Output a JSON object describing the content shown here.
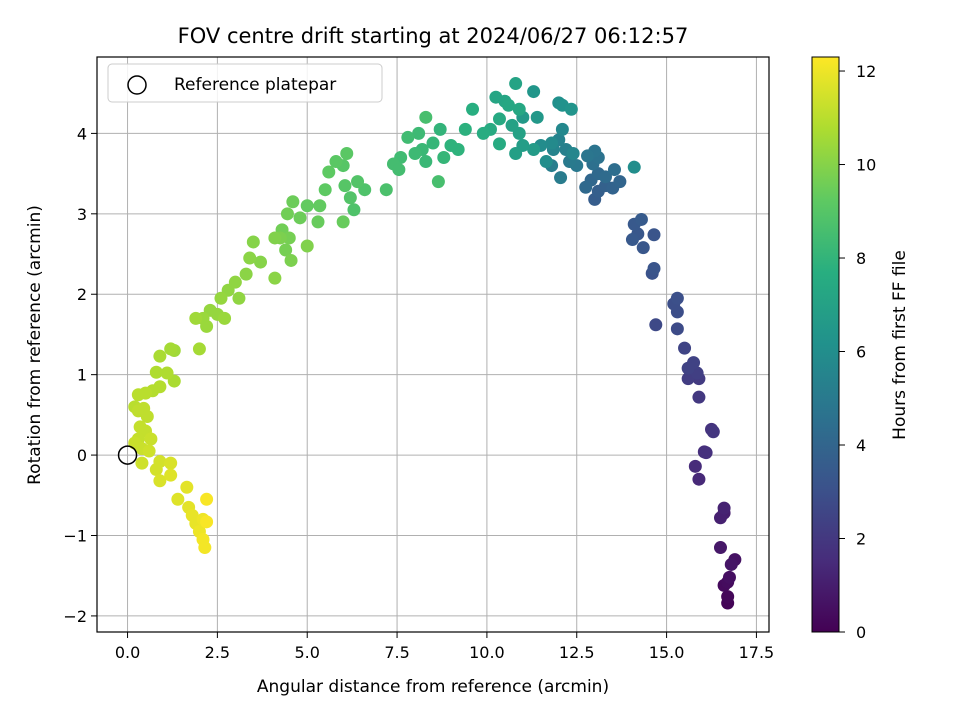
{
  "chart_data": {
    "type": "scatter",
    "title": "FOV centre drift starting at 2024/06/27 06:12:57",
    "xlabel": "Angular distance from reference (arcmin)",
    "ylabel": "Rotation from reference (arcmin)",
    "xlim": [
      -0.85,
      17.85
    ],
    "ylim": [
      -2.2,
      4.95
    ],
    "xticks": [
      0.0,
      2.5,
      5.0,
      7.5,
      10.0,
      12.5,
      15.0,
      17.5
    ],
    "xtick_labels": [
      "0.0",
      "2.5",
      "5.0",
      "7.5",
      "10.0",
      "12.5",
      "15.0",
      "17.5"
    ],
    "yticks": [
      -2,
      -1,
      0,
      1,
      2,
      3,
      4
    ],
    "ytick_labels": [
      "−2",
      "−1",
      "0",
      "1",
      "2",
      "3",
      "4"
    ],
    "grid": true,
    "legend": {
      "position": "top-left",
      "entries": [
        {
          "label": "Reference platepar",
          "marker": "open-circle"
        }
      ]
    },
    "reference_point": {
      "x": 0,
      "y": 0
    },
    "colorbar": {
      "label": "Hours from first FF file",
      "colormap": "viridis",
      "range": [
        0,
        12.3
      ],
      "ticks": [
        0,
        2,
        4,
        6,
        8,
        10,
        12
      ],
      "tick_labels": [
        "0",
        "2",
        "4",
        "6",
        "8",
        "10",
        "12"
      ]
    },
    "series": [
      {
        "value_key": "hours",
        "points": [
          {
            "x": 16.7,
            "y": -1.84,
            "h": 0.1
          },
          {
            "x": 16.7,
            "y": -1.76,
            "h": 0.2
          },
          {
            "x": 16.6,
            "y": -1.62,
            "h": 0.3
          },
          {
            "x": 16.7,
            "y": -1.58,
            "h": 0.4
          },
          {
            "x": 16.75,
            "y": -1.52,
            "h": 0.5
          },
          {
            "x": 16.9,
            "y": -1.3,
            "h": 0.6
          },
          {
            "x": 16.8,
            "y": -1.36,
            "h": 0.7
          },
          {
            "x": 16.5,
            "y": -1.15,
            "h": 0.8
          },
          {
            "x": 16.6,
            "y": -0.72,
            "h": 1.0
          },
          {
            "x": 16.5,
            "y": -0.78,
            "h": 1.1
          },
          {
            "x": 16.6,
            "y": -0.66,
            "h": 1.2
          },
          {
            "x": 15.9,
            "y": -0.3,
            "h": 1.4
          },
          {
            "x": 15.8,
            "y": -0.14,
            "h": 1.5
          },
          {
            "x": 16.05,
            "y": 0.04,
            "h": 1.6
          },
          {
            "x": 16.1,
            "y": 0.03,
            "h": 1.7
          },
          {
            "x": 16.25,
            "y": 0.32,
            "h": 1.8
          },
          {
            "x": 16.3,
            "y": 0.29,
            "h": 1.9
          },
          {
            "x": 15.9,
            "y": 0.72,
            "h": 2.0
          },
          {
            "x": 15.9,
            "y": 0.95,
            "h": 2.1
          },
          {
            "x": 15.6,
            "y": 0.95,
            "h": 2.2
          },
          {
            "x": 15.7,
            "y": 1.05,
            "h": 2.2
          },
          {
            "x": 15.85,
            "y": 1.02,
            "h": 2.3
          },
          {
            "x": 15.75,
            "y": 1.15,
            "h": 2.4
          },
          {
            "x": 15.6,
            "y": 1.08,
            "h": 2.4
          },
          {
            "x": 15.5,
            "y": 1.33,
            "h": 2.5
          },
          {
            "x": 14.7,
            "y": 1.62,
            "h": 2.7
          },
          {
            "x": 15.3,
            "y": 1.57,
            "h": 2.8
          },
          {
            "x": 15.3,
            "y": 1.78,
            "h": 2.9
          },
          {
            "x": 15.2,
            "y": 1.88,
            "h": 2.9
          },
          {
            "x": 15.3,
            "y": 1.95,
            "h": 3.0
          },
          {
            "x": 14.6,
            "y": 2.26,
            "h": 3.1
          },
          {
            "x": 14.65,
            "y": 2.32,
            "h": 3.2
          },
          {
            "x": 14.65,
            "y": 2.74,
            "h": 3.2
          },
          {
            "x": 14.35,
            "y": 2.58,
            "h": 3.3
          },
          {
            "x": 14.2,
            "y": 2.75,
            "h": 3.3
          },
          {
            "x": 14.05,
            "y": 2.68,
            "h": 3.4
          },
          {
            "x": 14.1,
            "y": 2.87,
            "h": 3.4
          },
          {
            "x": 14.3,
            "y": 2.93,
            "h": 3.5
          },
          {
            "x": 13.0,
            "y": 3.18,
            "h": 3.6
          },
          {
            "x": 13.1,
            "y": 3.28,
            "h": 3.7
          },
          {
            "x": 13.3,
            "y": 3.35,
            "h": 3.8
          },
          {
            "x": 13.5,
            "y": 3.32,
            "h": 3.9
          },
          {
            "x": 13.7,
            "y": 3.4,
            "h": 4.0
          },
          {
            "x": 12.9,
            "y": 3.42,
            "h": 4.1
          },
          {
            "x": 12.75,
            "y": 3.33,
            "h": 4.2
          },
          {
            "x": 13.1,
            "y": 3.5,
            "h": 4.2
          },
          {
            "x": 13.3,
            "y": 3.46,
            "h": 4.3
          },
          {
            "x": 13.55,
            "y": 3.55,
            "h": 4.4
          },
          {
            "x": 12.95,
            "y": 3.62,
            "h": 4.5
          },
          {
            "x": 13.1,
            "y": 3.7,
            "h": 4.6
          },
          {
            "x": 13.0,
            "y": 3.78,
            "h": 4.7
          },
          {
            "x": 12.8,
            "y": 3.72,
            "h": 4.8
          },
          {
            "x": 12.5,
            "y": 3.6,
            "h": 4.9
          },
          {
            "x": 12.3,
            "y": 3.65,
            "h": 5.0
          },
          {
            "x": 12.05,
            "y": 3.45,
            "h": 5.1
          },
          {
            "x": 11.8,
            "y": 3.6,
            "h": 5.2
          },
          {
            "x": 12.2,
            "y": 3.8,
            "h": 5.3
          },
          {
            "x": 12.0,
            "y": 3.92,
            "h": 5.4
          },
          {
            "x": 11.85,
            "y": 3.8,
            "h": 5.5
          },
          {
            "x": 12.4,
            "y": 3.75,
            "h": 5.6
          },
          {
            "x": 12.1,
            "y": 4.05,
            "h": 5.7
          },
          {
            "x": 11.8,
            "y": 3.88,
            "h": 5.8
          },
          {
            "x": 11.5,
            "y": 3.85,
            "h": 5.9
          },
          {
            "x": 11.65,
            "y": 3.65,
            "h": 6.0
          },
          {
            "x": 14.1,
            "y": 3.58,
            "h": 6.0
          },
          {
            "x": 12.0,
            "y": 4.38,
            "h": 6.1
          },
          {
            "x": 12.1,
            "y": 4.35,
            "h": 6.2
          },
          {
            "x": 12.35,
            "y": 4.3,
            "h": 6.3
          },
          {
            "x": 11.3,
            "y": 4.52,
            "h": 6.4
          },
          {
            "x": 11.4,
            "y": 4.2,
            "h": 6.5
          },
          {
            "x": 11.0,
            "y": 4.2,
            "h": 6.6
          },
          {
            "x": 11.3,
            "y": 3.8,
            "h": 6.7
          },
          {
            "x": 11.0,
            "y": 3.85,
            "h": 6.8
          },
          {
            "x": 10.8,
            "y": 3.75,
            "h": 6.9
          },
          {
            "x": 10.9,
            "y": 4.0,
            "h": 7.0
          },
          {
            "x": 10.7,
            "y": 4.1,
            "h": 7.0
          },
          {
            "x": 10.8,
            "y": 4.62,
            "h": 7.1
          },
          {
            "x": 10.5,
            "y": 4.4,
            "h": 7.2
          },
          {
            "x": 10.25,
            "y": 4.45,
            "h": 7.2
          },
          {
            "x": 10.6,
            "y": 4.35,
            "h": 7.3
          },
          {
            "x": 10.9,
            "y": 4.3,
            "h": 7.3
          },
          {
            "x": 10.35,
            "y": 4.18,
            "h": 7.4
          },
          {
            "x": 10.1,
            "y": 4.05,
            "h": 7.5
          },
          {
            "x": 10.35,
            "y": 3.87,
            "h": 7.5
          },
          {
            "x": 9.9,
            "y": 4.0,
            "h": 7.6
          },
          {
            "x": 9.6,
            "y": 4.3,
            "h": 7.7
          },
          {
            "x": 9.4,
            "y": 4.05,
            "h": 7.8
          },
          {
            "x": 9.2,
            "y": 3.8,
            "h": 7.9
          },
          {
            "x": 9.0,
            "y": 3.85,
            "h": 7.9
          },
          {
            "x": 8.7,
            "y": 4.05,
            "h": 8.0
          },
          {
            "x": 8.8,
            "y": 3.7,
            "h": 8.1
          },
          {
            "x": 8.5,
            "y": 3.88,
            "h": 8.1
          },
          {
            "x": 8.3,
            "y": 3.65,
            "h": 8.2
          },
          {
            "x": 8.2,
            "y": 3.8,
            "h": 8.2
          },
          {
            "x": 8.1,
            "y": 4.0,
            "h": 8.3
          },
          {
            "x": 8.0,
            "y": 3.75,
            "h": 8.3
          },
          {
            "x": 7.8,
            "y": 3.95,
            "h": 8.4
          },
          {
            "x": 7.6,
            "y": 3.7,
            "h": 8.4
          },
          {
            "x": 7.4,
            "y": 3.62,
            "h": 8.5
          },
          {
            "x": 7.55,
            "y": 3.55,
            "h": 8.5
          },
          {
            "x": 8.3,
            "y": 4.2,
            "h": 8.6
          },
          {
            "x": 8.65,
            "y": 3.4,
            "h": 8.6
          },
          {
            "x": 7.2,
            "y": 3.3,
            "h": 8.7
          },
          {
            "x": 6.6,
            "y": 3.3,
            "h": 8.8
          },
          {
            "x": 6.3,
            "y": 3.05,
            "h": 8.8
          },
          {
            "x": 6.4,
            "y": 3.4,
            "h": 8.9
          },
          {
            "x": 6.2,
            "y": 3.2,
            "h": 8.9
          },
          {
            "x": 6.05,
            "y": 3.35,
            "h": 9.0
          },
          {
            "x": 6.0,
            "y": 3.6,
            "h": 9.0
          },
          {
            "x": 6.1,
            "y": 3.75,
            "h": 9.1
          },
          {
            "x": 5.8,
            "y": 3.65,
            "h": 9.1
          },
          {
            "x": 5.6,
            "y": 3.52,
            "h": 9.2
          },
          {
            "x": 5.5,
            "y": 3.3,
            "h": 9.2
          },
          {
            "x": 5.35,
            "y": 3.1,
            "h": 9.3
          },
          {
            "x": 5.0,
            "y": 3.1,
            "h": 9.3
          },
          {
            "x": 6.0,
            "y": 2.9,
            "h": 9.4
          },
          {
            "x": 5.3,
            "y": 2.9,
            "h": 9.4
          },
          {
            "x": 4.8,
            "y": 2.95,
            "h": 9.5
          },
          {
            "x": 4.6,
            "y": 3.15,
            "h": 9.5
          },
          {
            "x": 4.45,
            "y": 3.0,
            "h": 9.6
          },
          {
            "x": 4.3,
            "y": 2.8,
            "h": 9.6
          },
          {
            "x": 4.5,
            "y": 2.7,
            "h": 9.7
          },
          {
            "x": 4.4,
            "y": 2.55,
            "h": 9.7
          },
          {
            "x": 4.25,
            "y": 2.7,
            "h": 9.8
          },
          {
            "x": 4.55,
            "y": 2.42,
            "h": 9.8
          },
          {
            "x": 5.0,
            "y": 2.6,
            "h": 9.9
          },
          {
            "x": 4.1,
            "y": 2.7,
            "h": 9.9
          },
          {
            "x": 3.5,
            "y": 2.65,
            "h": 10.0
          },
          {
            "x": 3.7,
            "y": 2.4,
            "h": 10.0
          },
          {
            "x": 3.4,
            "y": 2.45,
            "h": 10.1
          },
          {
            "x": 3.3,
            "y": 2.25,
            "h": 10.1
          },
          {
            "x": 4.1,
            "y": 2.2,
            "h": 10.1
          },
          {
            "x": 3.0,
            "y": 2.15,
            "h": 10.2
          },
          {
            "x": 3.1,
            "y": 1.95,
            "h": 10.2
          },
          {
            "x": 2.8,
            "y": 2.05,
            "h": 10.2
          },
          {
            "x": 2.6,
            "y": 1.95,
            "h": 10.3
          },
          {
            "x": 2.5,
            "y": 1.75,
            "h": 10.3
          },
          {
            "x": 2.3,
            "y": 1.8,
            "h": 10.3
          },
          {
            "x": 2.7,
            "y": 1.7,
            "h": 10.4
          },
          {
            "x": 2.1,
            "y": 1.7,
            "h": 10.4
          },
          {
            "x": 2.2,
            "y": 1.6,
            "h": 10.4
          },
          {
            "x": 1.9,
            "y": 1.7,
            "h": 10.5
          },
          {
            "x": 1.3,
            "y": 1.3,
            "h": 10.5
          },
          {
            "x": 2.0,
            "y": 1.32,
            "h": 10.6
          },
          {
            "x": 1.2,
            "y": 1.32,
            "h": 10.6
          },
          {
            "x": 0.9,
            "y": 1.23,
            "h": 10.7
          },
          {
            "x": 1.3,
            "y": 0.92,
            "h": 10.7
          },
          {
            "x": 1.1,
            "y": 1.02,
            "h": 10.8
          },
          {
            "x": 0.8,
            "y": 1.03,
            "h": 10.8
          },
          {
            "x": 0.9,
            "y": 0.85,
            "h": 10.9
          },
          {
            "x": 0.7,
            "y": 0.8,
            "h": 10.9
          },
          {
            "x": 0.5,
            "y": 0.77,
            "h": 11.0
          },
          {
            "x": 0.3,
            "y": 0.75,
            "h": 11.0
          },
          {
            "x": 0.2,
            "y": 0.6,
            "h": 11.0
          },
          {
            "x": 0.45,
            "y": 0.58,
            "h": 11.1
          },
          {
            "x": 0.3,
            "y": 0.55,
            "h": 11.1
          },
          {
            "x": 0.55,
            "y": 0.48,
            "h": 11.1
          },
          {
            "x": 0.35,
            "y": 0.35,
            "h": 11.2
          },
          {
            "x": 0.5,
            "y": 0.3,
            "h": 11.2
          },
          {
            "x": 0.3,
            "y": 0.2,
            "h": 11.2
          },
          {
            "x": 0.2,
            "y": 0.15,
            "h": 11.3
          },
          {
            "x": 0.4,
            "y": 0.08,
            "h": 11.3
          },
          {
            "x": 0.65,
            "y": 0.2,
            "h": 11.3
          },
          {
            "x": 0.6,
            "y": 0.05,
            "h": 11.4
          },
          {
            "x": 0.4,
            "y": -0.1,
            "h": 11.4
          },
          {
            "x": 0.9,
            "y": -0.08,
            "h": 11.5
          },
          {
            "x": 0.8,
            "y": -0.18,
            "h": 11.5
          },
          {
            "x": 0.9,
            "y": -0.32,
            "h": 11.6
          },
          {
            "x": 1.2,
            "y": -0.1,
            "h": 11.6
          },
          {
            "x": 1.2,
            "y": -0.25,
            "h": 11.7
          },
          {
            "x": 1.4,
            "y": -0.55,
            "h": 11.7
          },
          {
            "x": 1.65,
            "y": -0.4,
            "h": 11.8
          },
          {
            "x": 1.7,
            "y": -0.65,
            "h": 11.8
          },
          {
            "x": 1.8,
            "y": -0.75,
            "h": 11.9
          },
          {
            "x": 1.9,
            "y": -0.85,
            "h": 11.9
          },
          {
            "x": 2.1,
            "y": -0.8,
            "h": 12.0
          },
          {
            "x": 2.0,
            "y": -0.95,
            "h": 12.0
          },
          {
            "x": 2.1,
            "y": -1.05,
            "h": 12.1
          },
          {
            "x": 2.15,
            "y": -1.15,
            "h": 12.1
          },
          {
            "x": 2.2,
            "y": -0.55,
            "h": 12.2
          },
          {
            "x": 2.2,
            "y": -0.83,
            "h": 12.2
          }
        ]
      }
    ]
  }
}
